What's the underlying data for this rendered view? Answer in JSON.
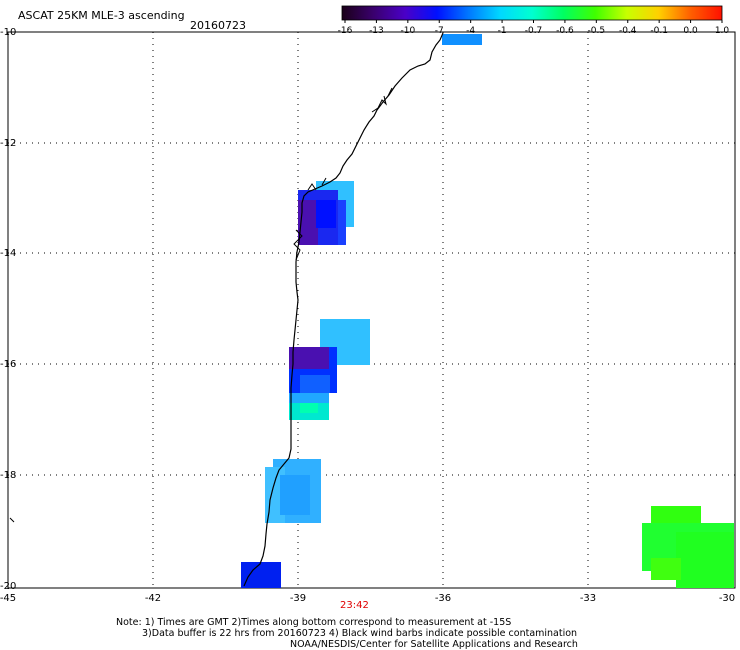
{
  "header": {
    "title": "ASCAT 25KM MLE-3 ascending",
    "date": "20160723"
  },
  "colorbar": {
    "labels": [
      "-16",
      "-13",
      "-10",
      "-7",
      "-4",
      "-1",
      "-0.7",
      "-0.6",
      "-0.5",
      "-0.4",
      "-0.1",
      "0.0",
      "1.0"
    ],
    "colors": [
      "#1a0018",
      "#3a006e",
      "#4a00c8",
      "#0010ff",
      "#0078ff",
      "#00d8ff",
      "#00ffd0",
      "#00ff60",
      "#40ff00",
      "#c8ff00",
      "#ffd000",
      "#ff6000",
      "#ff1000"
    ]
  },
  "axes": {
    "x_ticks": [
      "-45",
      "-42",
      "-39",
      "-36",
      "-33",
      "-30"
    ],
    "y_ticks": [
      "-10",
      "-12",
      "-14",
      "-16",
      "-18",
      "-20"
    ]
  },
  "time_label": "23:42",
  "notes": [
    "Note: 1) Times are GMT 2)Times along bottom correspond to measurement at -15S",
    "3)Data buffer is 22 hrs from 20160723 4) Black wind barbs indicate possible contamination",
    "NOAA/NESDIS/Center for Satellite Applications and Research"
  ],
  "colors": {
    "indigo": "#3a0da0",
    "purple": "#4a00c8",
    "blue": "#0018ff",
    "mid_blue": "#0060ff",
    "sky_blue": "#10a8ff",
    "light_blue": "#40c8ff",
    "cyan": "#00e8ff",
    "aqua": "#00ffb0",
    "green": "#20ff20",
    "lime": "#30ff10"
  }
}
